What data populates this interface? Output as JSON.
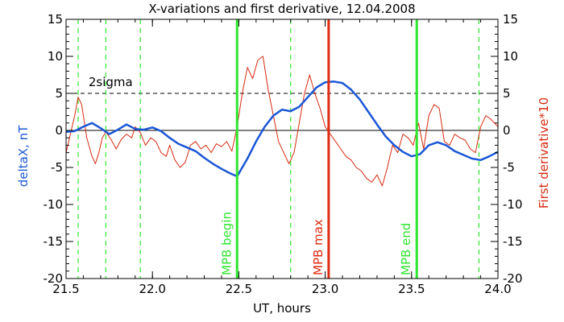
{
  "chart_data": {
    "type": "line",
    "title": "X-variations and first derivative, 12.04.2008",
    "xlabel": "UT, hours",
    "ylabel_left": "deltaX, nT",
    "ylabel_right": "First derivative*10",
    "xlim": [
      21.5,
      24.0
    ],
    "ylim": [
      -20,
      15
    ],
    "xticks": [
      "21.5",
      "22.0",
      "22.5",
      "23.0",
      "23.5",
      "24.0"
    ],
    "yticks": [
      "-20",
      "-15",
      "-10",
      "-5",
      "0",
      "5",
      "10",
      "15"
    ],
    "threshold": {
      "label": "2sigma",
      "y": 5
    },
    "zero_line": 0,
    "colors": {
      "deltax": "#1a57d6",
      "derivative": "#d62a10",
      "markers_green": "#2ee62e",
      "marker_red": "#e02a10"
    },
    "markers": [
      {
        "label": "MPB begin",
        "x": 22.49,
        "color": "green"
      },
      {
        "label": "MPB max",
        "x": 23.02,
        "color": "red"
      },
      {
        "label": "MPB end",
        "x": 23.53,
        "color": "green"
      }
    ],
    "dashed_verticals": [
      21.57,
      21.73,
      21.93,
      22.8,
      23.89
    ],
    "series": [
      {
        "name": "deltaX, nT",
        "axis": "left",
        "x": [
          21.5,
          21.55,
          21.6,
          21.65,
          21.7,
          21.75,
          21.8,
          21.85,
          21.9,
          21.95,
          22.0,
          22.05,
          22.1,
          22.15,
          22.2,
          22.25,
          22.3,
          22.35,
          22.4,
          22.45,
          22.49,
          22.55,
          22.6,
          22.65,
          22.7,
          22.75,
          22.8,
          22.85,
          22.9,
          22.95,
          23.0,
          23.05,
          23.1,
          23.15,
          23.2,
          23.25,
          23.3,
          23.35,
          23.4,
          23.45,
          23.5,
          23.55,
          23.6,
          23.65,
          23.7,
          23.75,
          23.8,
          23.85,
          23.9,
          23.95,
          24.0
        ],
        "y": [
          -0.2,
          -0.1,
          0.5,
          1.0,
          0.3,
          -0.5,
          0.1,
          0.8,
          0.2,
          0.1,
          0.4,
          -0.1,
          -1.0,
          -1.8,
          -2.3,
          -2.8,
          -3.7,
          -4.5,
          -5.2,
          -5.8,
          -6.2,
          -3.8,
          -1.5,
          0.5,
          2.0,
          2.8,
          2.6,
          3.2,
          4.5,
          5.8,
          6.5,
          6.6,
          6.4,
          5.5,
          4.2,
          2.5,
          0.8,
          -0.8,
          -2.0,
          -2.9,
          -3.5,
          -3.2,
          -2.0,
          -1.6,
          -2.0,
          -2.8,
          -3.3,
          -3.8,
          -4.0,
          -3.5,
          -2.9
        ]
      },
      {
        "name": "First derivative*10",
        "axis": "right",
        "x": [
          21.5,
          21.52,
          21.55,
          21.57,
          21.59,
          21.62,
          21.65,
          21.67,
          21.69,
          21.71,
          21.73,
          21.76,
          21.79,
          21.82,
          21.85,
          21.88,
          21.9,
          21.93,
          21.96,
          21.99,
          22.02,
          22.05,
          22.08,
          22.1,
          22.13,
          22.16,
          22.19,
          22.22,
          22.25,
          22.28,
          22.31,
          22.34,
          22.37,
          22.4,
          22.43,
          22.46,
          22.49,
          22.52,
          22.55,
          22.58,
          22.61,
          22.64,
          22.67,
          22.7,
          22.73,
          22.76,
          22.79,
          22.82,
          22.85,
          22.88,
          22.91,
          22.94,
          22.97,
          23.0,
          23.03,
          23.06,
          23.09,
          23.12,
          23.15,
          23.18,
          23.21,
          23.24,
          23.27,
          23.3,
          23.33,
          23.36,
          23.39,
          23.42,
          23.45,
          23.48,
          23.51,
          23.54,
          23.57,
          23.6,
          23.63,
          23.66,
          23.69,
          23.72,
          23.75,
          23.78,
          23.81,
          23.84,
          23.87,
          23.9,
          23.93,
          23.96,
          24.0
        ],
        "y": [
          -3.0,
          -1.0,
          2.0,
          4.5,
          3.5,
          -1.0,
          -3.5,
          -4.5,
          -3.0,
          -1.0,
          -0.2,
          -1.2,
          -2.5,
          -1.2,
          -0.5,
          -1.0,
          0.5,
          -0.3,
          -2.0,
          -1.0,
          -1.5,
          -3.0,
          -3.5,
          -2.0,
          -4.0,
          -5.0,
          -4.3,
          -2.0,
          -1.5,
          -2.5,
          -2.0,
          -3.0,
          -1.8,
          -2.2,
          -1.5,
          -2.8,
          0.5,
          5.0,
          8.5,
          7.0,
          9.5,
          10.0,
          5.5,
          2.0,
          -1.5,
          -3.0,
          -4.5,
          -3.0,
          1.0,
          5.0,
          7.5,
          5.0,
          3.0,
          0.5,
          -0.5,
          -1.5,
          -2.5,
          -3.5,
          -4.0,
          -5.0,
          -5.5,
          -6.5,
          -7.0,
          -6.0,
          -7.5,
          -5.0,
          -2.0,
          -3.0,
          -0.5,
          -1.0,
          -2.0,
          1.0,
          -2.5,
          2.0,
          3.5,
          3.0,
          -1.5,
          -2.0,
          -0.5,
          -1.0,
          -1.3,
          -2.5,
          -3.0,
          0.5,
          2.0,
          1.5,
          0.5
        ]
      }
    ]
  }
}
